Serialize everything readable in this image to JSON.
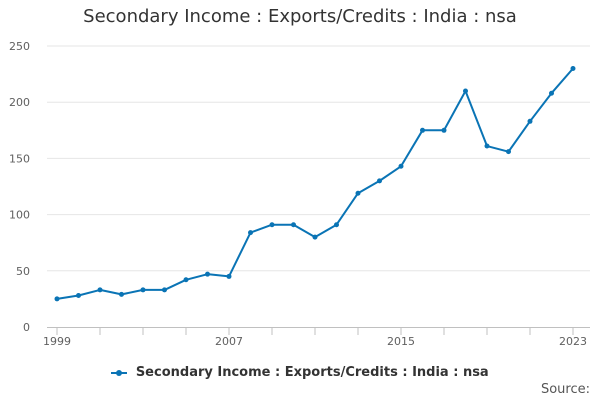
{
  "colors": {
    "series": "#0a74b5",
    "grid": "#e6e6e6",
    "axis": "#c0c0c0"
  },
  "chart_data": {
    "type": "line",
    "title": "Secondary Income : Exports/Credits : India : nsa",
    "xlabel": "",
    "ylabel": "",
    "x": [
      1999,
      2000,
      2001,
      2002,
      2003,
      2004,
      2005,
      2006,
      2007,
      2008,
      2009,
      2010,
      2011,
      2012,
      2013,
      2014,
      2015,
      2016,
      2017,
      2018,
      2019,
      2020,
      2021,
      2022,
      2023
    ],
    "series": [
      {
        "name": "Secondary Income : Exports/Credits : India : nsa",
        "values": [
          25,
          28,
          33,
          29,
          33,
          33,
          42,
          47,
          45,
          84,
          91,
          91,
          80,
          91,
          119,
          130,
          143,
          175,
          175,
          210,
          161,
          156,
          183,
          208,
          230
        ]
      }
    ],
    "x_ticks": [
      "1999",
      "2007",
      "2015",
      "2023"
    ],
    "y_ticks": [
      "0",
      "50",
      "100",
      "150",
      "200",
      "250"
    ],
    "ylim": [
      0,
      250
    ],
    "grid": true,
    "legend_position": "bottom"
  },
  "legend": {
    "label": "Secondary Income : Exports/Credits : India : nsa"
  },
  "source": {
    "label": "Source:"
  }
}
